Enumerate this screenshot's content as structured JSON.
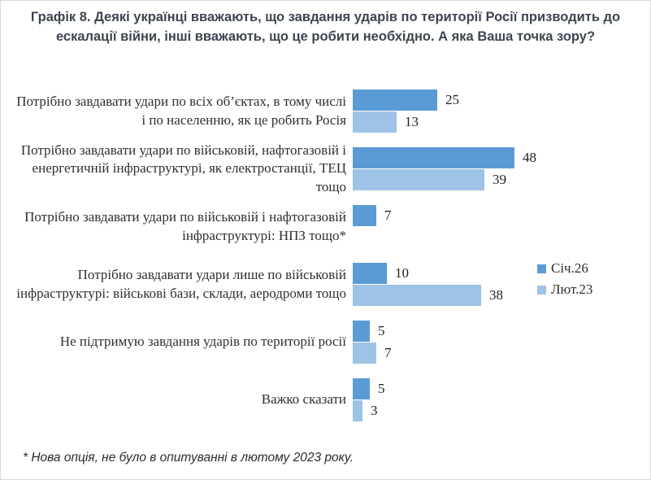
{
  "chart_data": {
    "type": "bar",
    "orientation": "horizontal",
    "title": "Графік 8. Деякі українці вважають, що завдання ударів по території Росії призводить до ескалації війни, інші вважають, що це робити необхідно. А яка Ваша точка зору?",
    "categories": [
      "Потрібно завдавати удари по всіх об’єктах, в тому числі і по населенню, як це робить Росія",
      "Потрібно завдавати удари по військовій, нафтогазовій і енергетичній інфраструктурі, як електростанції, ТЕЦ тощо",
      "Потрібно завдавати удари по військовій і нафтогазовій інфраструктурі: НПЗ тощо*",
      "Потрібно завдавати удари лише по військовій інфраструктурі: військові бази, склади, аеродроми тощо",
      "Не підтримую завдання ударів по території росії",
      "Важко сказати"
    ],
    "series": [
      {
        "name": "Січ.26",
        "color": "#5b9bd5",
        "values": [
          25,
          48,
          7,
          10,
          5,
          5
        ]
      },
      {
        "name": "Лют.23",
        "color": "#9dc3e6",
        "values": [
          13,
          39,
          null,
          38,
          7,
          3
        ]
      }
    ],
    "xlim": [
      0,
      48
    ],
    "grid": false,
    "legend_position": "right",
    "footnote": "* Нова опція, не було в опитуванні в лютому 2023 року."
  }
}
